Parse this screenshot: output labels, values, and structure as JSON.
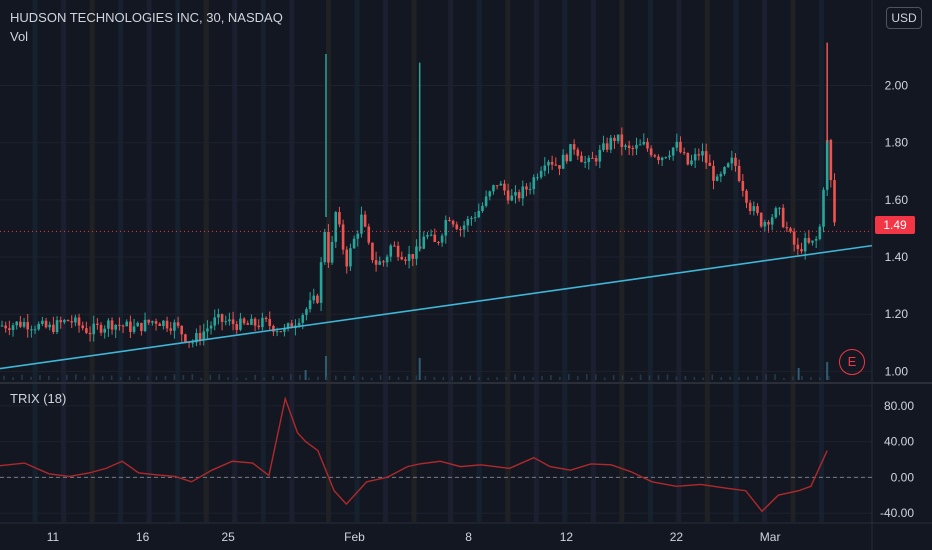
{
  "header": {
    "symbol_title": "HUDSON TECHNOLOGIES INC, 30, NASDAQ",
    "volume_label": "Vol",
    "currency_button": "USD",
    "earnings_badge": "E",
    "trix_label": "TRIX (18)",
    "last_price_label": "1.49"
  },
  "colors": {
    "background": "#131722",
    "up": "#26a69a",
    "down": "#ef5350",
    "trendline": "#3fb6d6",
    "trix_line": "#b0292b",
    "last_price": "#f23645",
    "grid": "#1e222d",
    "text": "#d1d4dc"
  },
  "chart_data": [
    {
      "type": "candlestick",
      "title": "HUDSON TECHNOLOGIES INC, 30, NASDAQ",
      "currency": "USD",
      "y_ticks": [
        1.0,
        1.2,
        1.4,
        1.6,
        1.8,
        2.0
      ],
      "ylim": [
        0.97,
        2.25
      ],
      "x_ticks": [
        "11",
        "16",
        "25",
        "Feb",
        "8",
        "12",
        "22",
        "Mar"
      ],
      "last_price": 1.49,
      "last_price_line": "dotted",
      "price_path": [
        [
          0,
          1.16
        ],
        [
          6,
          1.17
        ],
        [
          12,
          1.15
        ],
        [
          17,
          1.18
        ],
        [
          22,
          1.14
        ],
        [
          27,
          1.17
        ],
        [
          33,
          1.15
        ],
        [
          38,
          1.18
        ],
        [
          43,
          1.16
        ],
        [
          47,
          1.1
        ],
        [
          53,
          1.18
        ],
        [
          60,
          1.16
        ],
        [
          65,
          1.17
        ],
        [
          70,
          1.14
        ],
        [
          74,
          1.2
        ],
        [
          78,
          1.26
        ],
        [
          80,
          1.54
        ],
        [
          81,
          1.3
        ],
        [
          82,
          1.58
        ],
        [
          85,
          1.38
        ],
        [
          86,
          1.42
        ],
        [
          89,
          1.55
        ],
        [
          90,
          1.45
        ],
        [
          92,
          1.38
        ],
        [
          94,
          1.38
        ],
        [
          96,
          1.44
        ],
        [
          100,
          1.4
        ],
        [
          103,
          1.42
        ],
        [
          104,
          1.48
        ],
        [
          105,
          1.47
        ],
        [
          107,
          1.44
        ],
        [
          110,
          1.55
        ],
        [
          113,
          1.5
        ],
        [
          118,
          1.57
        ],
        [
          122,
          1.66
        ],
        [
          126,
          1.6
        ],
        [
          130,
          1.65
        ],
        [
          134,
          1.75
        ],
        [
          137,
          1.72
        ],
        [
          141,
          1.79
        ],
        [
          144,
          1.72
        ],
        [
          147,
          1.76
        ],
        [
          151,
          1.82
        ],
        [
          154,
          1.77
        ],
        [
          158,
          1.79
        ],
        [
          162,
          1.75
        ],
        [
          166,
          1.79
        ],
        [
          169,
          1.72
        ],
        [
          172,
          1.77
        ],
        [
          176,
          1.66
        ],
        [
          180,
          1.74
        ],
        [
          184,
          1.58
        ],
        [
          187,
          1.52
        ],
        [
          191,
          1.56
        ],
        [
          194,
          1.47
        ],
        [
          196,
          1.41
        ],
        [
          197,
          1.45
        ],
        [
          199,
          1.44
        ],
        [
          201,
          1.47
        ],
        [
          203,
          1.8
        ],
        [
          205,
          1.49
        ]
      ],
      "spikes": [
        {
          "x": 80,
          "high": 2.11
        },
        {
          "x": 103,
          "high": 2.08
        },
        {
          "x": 203,
          "high": 2.15
        }
      ],
      "trendline": {
        "from": [
          0,
          1.01
        ],
        "to": [
          214,
          1.44
        ]
      },
      "volume_spikes": [
        [
          80,
          0.6
        ],
        [
          103,
          0.55
        ],
        [
          203,
          0.45
        ],
        [
          75,
          0.25
        ],
        [
          196,
          0.3
        ]
      ],
      "session_bands": [
        [
          8,
          1
        ],
        [
          15,
          2
        ],
        [
          22,
          3
        ],
        [
          29,
          1
        ],
        [
          36,
          2
        ],
        [
          43,
          1
        ],
        [
          50,
          3
        ],
        [
          57,
          2
        ],
        [
          64,
          1
        ],
        [
          71,
          2
        ],
        [
          80,
          3
        ],
        [
          87,
          1
        ],
        [
          94,
          2
        ],
        [
          101,
          3
        ],
        [
          110,
          2
        ],
        [
          117,
          1
        ],
        [
          124,
          3
        ],
        [
          131,
          2
        ],
        [
          138,
          1
        ],
        [
          145,
          2
        ],
        [
          152,
          3
        ],
        [
          159,
          1
        ],
        [
          166,
          2
        ],
        [
          173,
          3
        ],
        [
          180,
          1
        ],
        [
          187,
          2
        ],
        [
          194,
          3
        ],
        [
          201,
          1
        ]
      ]
    },
    {
      "type": "line",
      "title": "TRIX (18)",
      "y_ticks": [
        80.0,
        40.0,
        0.0,
        -40.0
      ],
      "y_tick_labels": [
        "80.00",
        "40.00",
        "0.00",
        "-40.00"
      ],
      "ylim": [
        -50,
        100
      ],
      "zero_line": "dashed",
      "series": [
        {
          "values": [
            [
              0,
              13
            ],
            [
              6,
              16
            ],
            [
              12,
              4
            ],
            [
              17,
              1
            ],
            [
              22,
              5
            ],
            [
              26,
              10
            ],
            [
              30,
              18
            ],
            [
              34,
              5
            ],
            [
              38,
              3
            ],
            [
              43,
              1
            ],
            [
              47,
              -5
            ],
            [
              52,
              8
            ],
            [
              57,
              18
            ],
            [
              62,
              16
            ],
            [
              66,
              2
            ],
            [
              70,
              88
            ],
            [
              73,
              50
            ],
            [
              75,
              40
            ],
            [
              78,
              30
            ],
            [
              82,
              -15
            ],
            [
              85,
              -30
            ],
            [
              90,
              -5
            ],
            [
              95,
              0
            ],
            [
              100,
              12
            ],
            [
              103,
              15
            ],
            [
              108,
              18
            ],
            [
              113,
              12
            ],
            [
              118,
              14
            ],
            [
              125,
              10
            ],
            [
              131,
              22
            ],
            [
              135,
              12
            ],
            [
              140,
              8
            ],
            [
              145,
              15
            ],
            [
              150,
              14
            ],
            [
              155,
              6
            ],
            [
              160,
              -5
            ],
            [
              166,
              -10
            ],
            [
              172,
              -8
            ],
            [
              178,
              -12
            ],
            [
              183,
              -15
            ],
            [
              187,
              -38
            ],
            [
              191,
              -20
            ],
            [
              196,
              -15
            ],
            [
              199,
              -10
            ],
            [
              203,
              30
            ]
          ]
        }
      ]
    }
  ]
}
